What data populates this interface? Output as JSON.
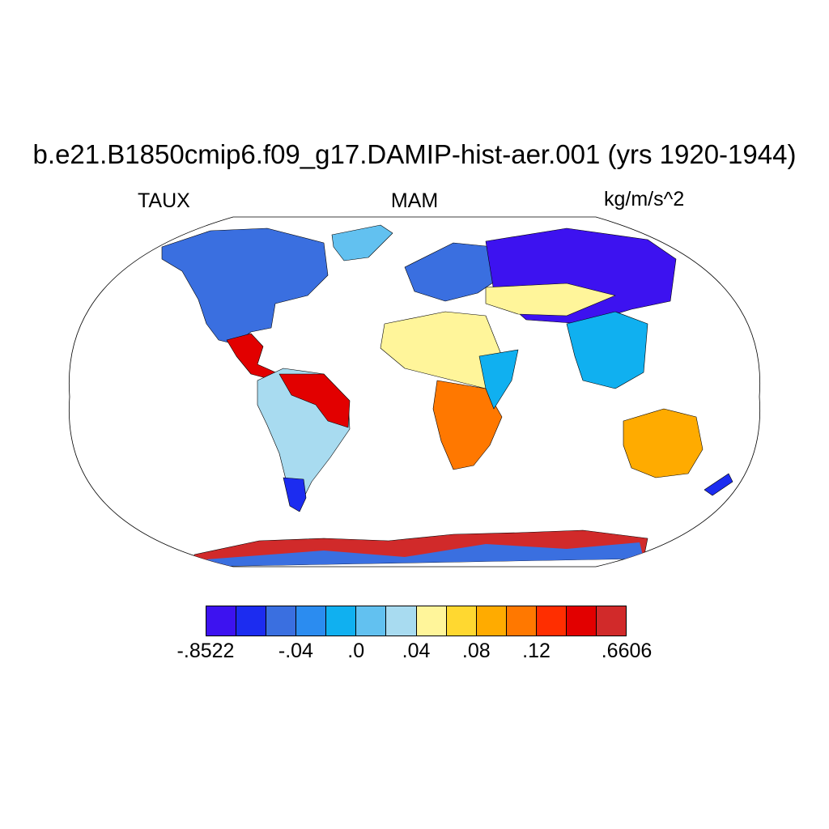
{
  "title": "b.e21.B1850cmip6.f09_g17.DAMIP-hist-aer.001 (yrs 1920-1944)",
  "left_label": "TAUX",
  "center_label": "MAM",
  "right_label": "kg/m/s^2",
  "colorbar": {
    "colors": [
      "#3d12f0",
      "#1c2cf0",
      "#3a6fe0",
      "#2b8cf0",
      "#10b0f0",
      "#62c1f0",
      "#a8dbf0",
      "#fff59a",
      "#ffd830",
      "#ffab00",
      "#ff7800",
      "#ff2e00",
      "#e20000",
      "#d12a2a"
    ],
    "tick_labels": [
      {
        "text": "-.8522",
        "boundary": 0
      },
      {
        "text": "-.04",
        "boundary": 3
      },
      {
        "text": ".0",
        "boundary": 5
      },
      {
        "text": ".04",
        "boundary": 7
      },
      {
        "text": ".08",
        "boundary": 9
      },
      {
        "text": ".12",
        "boundary": 11
      },
      {
        "text": ".6606",
        "boundary": 14
      }
    ]
  },
  "map": {
    "projection": "Robinson",
    "variable": "TAUX",
    "season": "MAM",
    "regions": [
      {
        "name": "north-america",
        "color_index": 2
      },
      {
        "name": "greenland",
        "color_index": 5
      },
      {
        "name": "central-america",
        "color_index": 12
      },
      {
        "name": "south-america",
        "color_index": 6
      },
      {
        "name": "amazon-east",
        "color_index": 12
      },
      {
        "name": "patagonia",
        "color_index": 1
      },
      {
        "name": "europe",
        "color_index": 2
      },
      {
        "name": "north-asia",
        "color_index": 0
      },
      {
        "name": "central-asia",
        "color_index": 7
      },
      {
        "name": "sahara",
        "color_index": 7
      },
      {
        "name": "southern-africa",
        "color_index": 10
      },
      {
        "name": "east-africa",
        "color_index": 4
      },
      {
        "name": "southeast-asia",
        "color_index": 4
      },
      {
        "name": "australia",
        "color_index": 9
      },
      {
        "name": "new-zealand",
        "color_index": 1
      },
      {
        "name": "antarctica",
        "color_index": 13
      }
    ]
  }
}
